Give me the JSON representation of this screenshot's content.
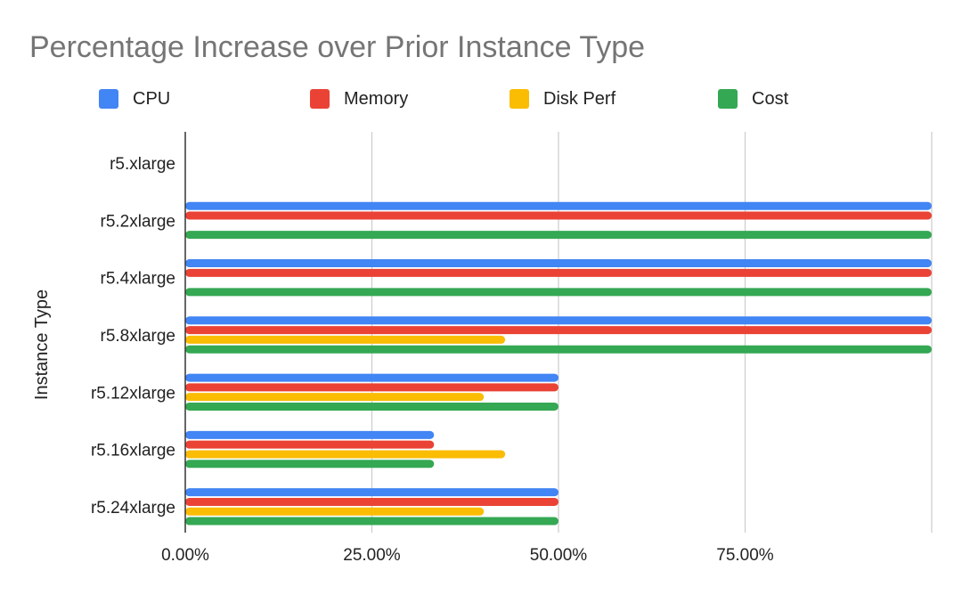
{
  "chart_data": {
    "type": "bar",
    "orientation": "horizontal",
    "title": "Percentage Increase over Prior Instance Type",
    "xlabel": "",
    "ylabel": "Instance Type",
    "categories": [
      "r5.xlarge",
      "r5.2xlarge",
      "r5.4xlarge",
      "r5.8xlarge",
      "r5.12xlarge",
      "r5.16xlarge",
      "r5.24xlarge"
    ],
    "x_ticks": [
      "0.00%",
      "25.00%",
      "50.00%",
      "75.00%"
    ],
    "xlim": [
      0,
      100
    ],
    "grid": true,
    "legend_position": "top",
    "series": [
      {
        "name": "CPU",
        "color": "#4285F4",
        "values": [
          0,
          100,
          100,
          100,
          50,
          33.33,
          50
        ]
      },
      {
        "name": "Memory",
        "color": "#EA4335",
        "values": [
          0,
          100,
          100,
          100,
          50,
          33.33,
          50
        ]
      },
      {
        "name": "Disk Perf",
        "color": "#FBBC04",
        "values": [
          0,
          0,
          0,
          42.86,
          40,
          42.86,
          40
        ]
      },
      {
        "name": "Cost",
        "color": "#34A853",
        "values": [
          0,
          100,
          100,
          100,
          50,
          33.33,
          50
        ]
      }
    ]
  }
}
